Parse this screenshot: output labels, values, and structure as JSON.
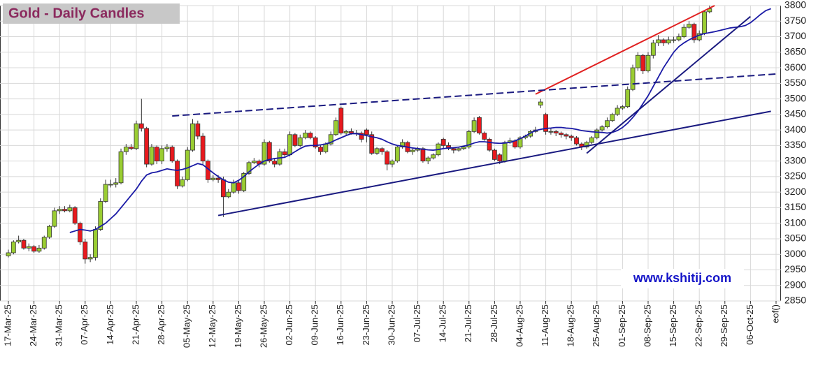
{
  "chart_data": {
    "type": "candlestick",
    "title": "Gold - Daily Candles",
    "watermark": "www.kshitij.com",
    "categories": [
      "17-Mar-25",
      null,
      null,
      null,
      null,
      "24-Mar-25",
      null,
      null,
      null,
      null,
      "31-Mar-25",
      null,
      null,
      null,
      null,
      "07-Apr-25",
      null,
      null,
      null,
      null,
      "14-Apr-25",
      null,
      null,
      null,
      null,
      "21-Apr-25",
      null,
      null,
      null,
      null,
      "28-Apr-25",
      null,
      null,
      null,
      null,
      "05-May-25",
      null,
      null,
      null,
      null,
      "12-May-25",
      null,
      null,
      null,
      null,
      "19-May-25",
      null,
      null,
      null,
      null,
      "26-May-25",
      null,
      null,
      null,
      null,
      "02-Jun-25",
      null,
      null,
      null,
      null,
      "09-Jun-25",
      null,
      null,
      null,
      null,
      "16-Jun-25",
      null,
      null,
      null,
      null,
      "23-Jun-25",
      null,
      null,
      null,
      null,
      "30-Jun-25",
      null,
      null,
      null,
      null,
      "07-Jul-25",
      null,
      null,
      null,
      null,
      "14-Jul-25",
      null,
      null,
      null,
      null,
      "21-Jul-25",
      null,
      null,
      null,
      null,
      "28-Jul-25",
      null,
      null,
      null,
      null,
      "04-Aug-25",
      null,
      null,
      null,
      null,
      "11-Aug-25",
      null,
      null,
      null,
      null,
      "18-Aug-25",
      null,
      null,
      null,
      null,
      "25-Aug-25",
      null,
      null,
      null,
      null,
      "01-Sep-25",
      null,
      null,
      null,
      null,
      "08-Sep-25",
      null,
      null,
      null,
      null,
      "15-Sep-25",
      null,
      null,
      null,
      null,
      "22-Sep-25",
      null,
      null,
      null,
      null,
      "29-Sep-25",
      null,
      null,
      null,
      null,
      "06-Oct-25",
      null,
      null,
      null,
      null,
      "eof()"
    ],
    "open": [
      2995,
      3005,
      3040,
      3045,
      3020,
      3025,
      3010,
      3020,
      3055,
      3090,
      3140,
      3145,
      3140,
      3150,
      3100,
      3040,
      2985,
      2990,
      3080,
      3170,
      3225,
      3225,
      3230,
      3330,
      3345,
      3340,
      3420,
      3405,
      3290,
      3345,
      3300,
      3340,
      3345,
      3300,
      3220,
      3240,
      3335,
      3420,
      3380,
      3300,
      3240,
      3245,
      3240,
      3185,
      3200,
      3230,
      3205,
      3260,
      3295,
      3300,
      3290,
      3360,
      3300,
      3290,
      3330,
      3320,
      3385,
      3350,
      3375,
      3390,
      3375,
      3345,
      3330,
      3355,
      3385,
      3470,
      3390,
      3395,
      3390,
      3390,
      3400,
      3385,
      3325,
      3340,
      3330,
      3290,
      3300,
      3345,
      3360,
      3330,
      3335,
      3340,
      3300,
      3310,
      3320,
      3370,
      3350,
      3340,
      3335,
      3340,
      3345,
      3395,
      3440,
      3390,
      3370,
      3335,
      3320,
      3300,
      3360,
      3365,
      3345,
      3375,
      3380,
      3395,
      3480,
      3450,
      3395,
      3395,
      3390,
      3385,
      3380,
      3375,
      3355,
      3345,
      3360,
      3375,
      3400,
      3410,
      3430,
      3450,
      3470,
      3475,
      3530,
      3600,
      3640,
      3590,
      3640,
      3680,
      3690,
      3680,
      3690,
      3690,
      3700,
      3730,
      3740,
      3690,
      3710,
      3780,
      null,
      null,
      null,
      null,
      null,
      null,
      null,
      null,
      null,
      null,
      null,
      null,
      null
    ],
    "high": [
      3015,
      3045,
      3060,
      3050,
      3035,
      3030,
      3030,
      3060,
      3095,
      3150,
      3155,
      3155,
      3160,
      3155,
      3105,
      3050,
      3000,
      3090,
      3180,
      3240,
      3240,
      3245,
      3340,
      3355,
      3355,
      3430,
      3500,
      3410,
      3355,
      3350,
      3350,
      3355,
      3350,
      3305,
      3250,
      3345,
      3435,
      3430,
      3390,
      3305,
      3255,
      3255,
      3250,
      3210,
      3240,
      3240,
      3265,
      3300,
      3310,
      3305,
      3370,
      3365,
      3310,
      3340,
      3340,
      3395,
      3390,
      3385,
      3400,
      3395,
      3380,
      3350,
      3360,
      3395,
      3440,
      3475,
      3400,
      3405,
      3400,
      3395,
      3405,
      3395,
      3345,
      3345,
      3335,
      3305,
      3350,
      3370,
      3365,
      3340,
      3345,
      3345,
      3315,
      3325,
      3360,
      3375,
      3360,
      3345,
      3345,
      3350,
      3400,
      3440,
      3445,
      3395,
      3375,
      3340,
      3325,
      3365,
      3375,
      3370,
      3380,
      3385,
      3400,
      3410,
      3500,
      3455,
      3405,
      3400,
      3395,
      3390,
      3385,
      3380,
      3360,
      3365,
      3380,
      3405,
      3415,
      3440,
      3455,
      3480,
      3480,
      3540,
      3610,
      3650,
      3645,
      3650,
      3690,
      3705,
      3695,
      3700,
      3700,
      3710,
      3740,
      3750,
      3745,
      3720,
      3785,
      3800,
      null,
      null,
      null,
      null,
      null,
      null,
      null,
      null,
      null,
      null,
      null,
      null,
      null
    ],
    "low": [
      2990,
      3000,
      3035,
      3015,
      3010,
      3005,
      3005,
      3015,
      3050,
      3085,
      3130,
      3135,
      3135,
      3095,
      3030,
      2970,
      2975,
      2980,
      3075,
      3165,
      3215,
      3215,
      3225,
      3320,
      3335,
      3335,
      3395,
      3280,
      3285,
      3290,
      3290,
      3330,
      3295,
      3210,
      3215,
      3235,
      3330,
      3370,
      3290,
      3230,
      3235,
      3230,
      3120,
      3180,
      3195,
      3195,
      3200,
      3255,
      3290,
      3280,
      3285,
      3295,
      3280,
      3285,
      3310,
      3315,
      3345,
      3345,
      3370,
      3370,
      3340,
      3320,
      3325,
      3350,
      3380,
      3385,
      3380,
      3385,
      3380,
      3360,
      3360,
      3320,
      3320,
      3320,
      3270,
      3280,
      3295,
      3340,
      3325,
      3320,
      3330,
      3295,
      3290,
      3305,
      3315,
      3340,
      3335,
      3325,
      3330,
      3335,
      3340,
      3390,
      3385,
      3365,
      3330,
      3300,
      3290,
      3295,
      3355,
      3340,
      3340,
      3370,
      3375,
      3390,
      3470,
      3385,
      3385,
      3380,
      3375,
      3370,
      3365,
      3350,
      3335,
      3340,
      3355,
      3370,
      3395,
      3405,
      3425,
      3445,
      3465,
      3470,
      3525,
      3590,
      3580,
      3585,
      3630,
      3670,
      3670,
      3675,
      3680,
      3685,
      3695,
      3725,
      3680,
      3685,
      3705,
      3775,
      null,
      null,
      null,
      null,
      null,
      null,
      null,
      null,
      null,
      null,
      null,
      null,
      null
    ],
    "close": [
      3005,
      3040,
      3045,
      3020,
      3025,
      3010,
      3020,
      3055,
      3090,
      3140,
      3145,
      3140,
      3150,
      3100,
      3040,
      2985,
      2990,
      3080,
      3170,
      3225,
      3225,
      3230,
      3330,
      3345,
      3340,
      3420,
      3405,
      3290,
      3345,
      3300,
      3340,
      3345,
      3300,
      3220,
      3240,
      3335,
      3420,
      3380,
      3300,
      3240,
      3245,
      3240,
      3185,
      3200,
      3230,
      3205,
      3260,
      3295,
      3300,
      3290,
      3360,
      3300,
      3290,
      3330,
      3320,
      3385,
      3350,
      3375,
      3390,
      3375,
      3345,
      3330,
      3355,
      3385,
      3430,
      3390,
      3395,
      3390,
      3390,
      3370,
      3385,
      3325,
      3340,
      3330,
      3290,
      3300,
      3345,
      3360,
      3330,
      3335,
      3340,
      3300,
      3310,
      3320,
      3355,
      3350,
      3340,
      3335,
      3340,
      3345,
      3395,
      3430,
      3390,
      3370,
      3335,
      3305,
      3300,
      3360,
      3365,
      3345,
      3375,
      3380,
      3395,
      3400,
      3490,
      3395,
      3395,
      3390,
      3385,
      3380,
      3375,
      3355,
      3345,
      3360,
      3375,
      3400,
      3410,
      3430,
      3450,
      3470,
      3475,
      3530,
      3600,
      3640,
      3590,
      3640,
      3680,
      3690,
      3680,
      3690,
      3690,
      3700,
      3730,
      3740,
      3690,
      3710,
      3780,
      3790,
      null,
      null,
      null,
      null,
      null,
      null,
      null,
      null,
      null,
      null,
      null,
      null,
      null
    ],
    "up_color": "#9acd32",
    "down_color": "#e8191e",
    "average": {
      "color": "#1a1aa6",
      "values": [
        null,
        null,
        null,
        null,
        null,
        null,
        null,
        null,
        null,
        null,
        null,
        null,
        3070,
        3075,
        3080,
        3078,
        3075,
        3080,
        3090,
        3100,
        3115,
        3130,
        3150,
        3170,
        3190,
        3210,
        3235,
        3255,
        3262,
        3265,
        3270,
        3275,
        3272,
        3270,
        3273,
        3278,
        3285,
        3292,
        3288,
        3275,
        3262,
        3250,
        3240,
        3232,
        3230,
        3238,
        3250,
        3265,
        3278,
        3290,
        3300,
        3305,
        3308,
        3310,
        3312,
        3320,
        3330,
        3340,
        3348,
        3350,
        3350,
        3352,
        3355,
        3360,
        3368,
        3375,
        3382,
        3388,
        3388,
        3385,
        3382,
        3378,
        3375,
        3370,
        3362,
        3355,
        3350,
        3348,
        3345,
        3342,
        3340,
        3338,
        3336,
        3335,
        3337,
        3340,
        3342,
        3343,
        3345,
        3348,
        3352,
        3358,
        3362,
        3362,
        3360,
        3358,
        3357,
        3358,
        3360,
        3365,
        3372,
        3380,
        3390,
        3398,
        3402,
        3405,
        3406,
        3408,
        3408,
        3406,
        3405,
        3402,
        3398,
        3396,
        3394,
        3393,
        3392,
        3390,
        3392,
        3398,
        3408,
        3422,
        3440,
        3460,
        3485,
        3510,
        3540,
        3570,
        3600,
        3625,
        3650,
        3668,
        3680,
        3690,
        3698,
        3705,
        3710,
        3713,
        3716,
        3720,
        3724,
        3728,
        3730,
        3732,
        3736,
        3745,
        3758,
        3772,
        3784,
        3790,
        null
      ]
    },
    "trendlines": [
      {
        "color": "#e02020",
        "dashed": false,
        "x": [
          103,
          138
        ],
        "values": [
          3515,
          3800
        ]
      },
      {
        "color": "#1a1a80",
        "dashed": true,
        "x": [
          32,
          150
        ],
        "values": [
          3445,
          3580
        ]
      },
      {
        "color": "#1a1a80",
        "dashed": false,
        "x": [
          41,
          149
        ],
        "values": [
          3125,
          3460
        ]
      },
      {
        "color": "#1a1a80",
        "dashed": false,
        "x": [
          113,
          145
        ],
        "values": [
          3325,
          3765
        ]
      }
    ],
    "ylim": [
      2850,
      3800
    ],
    "yticks": [
      2850,
      2900,
      2950,
      3000,
      3050,
      3100,
      3150,
      3200,
      3250,
      3300,
      3350,
      3400,
      3450,
      3500,
      3550,
      3600,
      3650,
      3700,
      3750,
      3800
    ],
    "grid": true
  }
}
